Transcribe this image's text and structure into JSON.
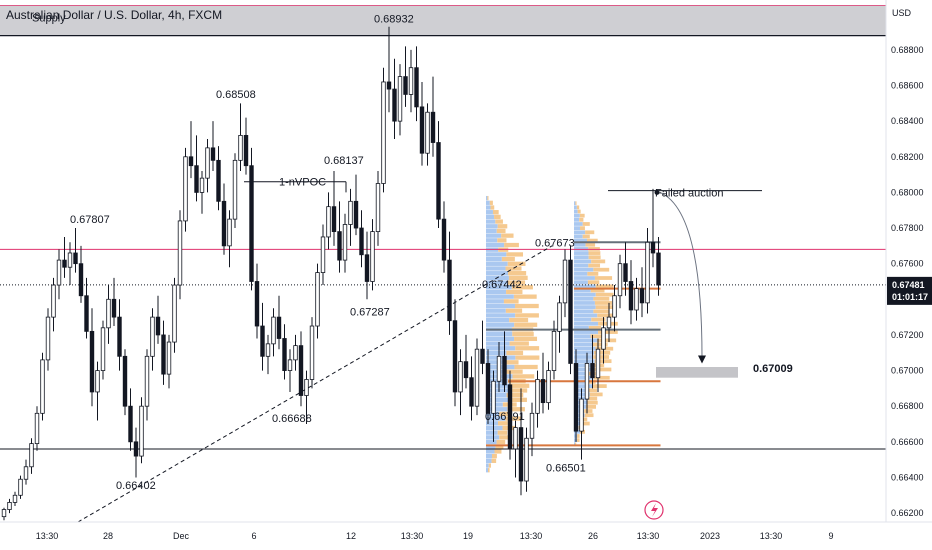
{
  "header": {
    "title": "Australian Dollar / U.S. Dollar, 4h, FXCM"
  },
  "colors": {
    "up": "#131722",
    "down": "#131722",
    "supply_zone": "#cfcfd3",
    "target_zone": "#c4c4c8",
    "magenta_line": "#e0336e",
    "poc_gray": "#66707a",
    "poc_orange": "#d8773e",
    "vp_blue": "#aac8f0",
    "vp_orange": "#f5c98f",
    "price_tag_bg": "#131722",
    "price_tag_fg": "#ffffff",
    "axis_text": "#131722"
  },
  "chart_data": {
    "type": "candlestick",
    "title": "Australian Dollar / U.S. Dollar, 4h, FXCM",
    "currency": "USD",
    "ylim": [
      0.6615,
      0.6908
    ],
    "y_ticks": [
      "0.68800",
      "0.68600",
      "0.68400",
      "0.68200",
      "0.68000",
      "0.67800",
      "0.67600",
      "0.67400",
      "0.67200",
      "0.67000",
      "0.66800",
      "0.66600",
      "0.66400",
      "0.66200"
    ],
    "x_ticks": [
      "13:30",
      "28",
      "Dec",
      "6",
      "12",
      "13:30",
      "19",
      "13:30",
      "26",
      "13:30",
      "2023",
      "13:30",
      "9"
    ],
    "last_price": "0.67481",
    "countdown": "01:01:17",
    "supply_zone": {
      "label": "Supply",
      "from": 0.6888,
      "to": 0.6905
    },
    "target_zone": {
      "from": 0.6696,
      "to": 0.6702
    },
    "horizontal_lines": [
      {
        "price": 0.6768,
        "kind": "magenta"
      },
      {
        "price": 0.6656,
        "kind": "dark"
      }
    ],
    "annotations": [
      {
        "text": "0.68932",
        "price": 0.68932
      },
      {
        "text": "0.68508",
        "price": 0.68508
      },
      {
        "text": "0.68137",
        "price": 0.68137
      },
      {
        "text": "0.67807",
        "price": 0.67807
      },
      {
        "text": "1-nVPOC",
        "price": 0.6806
      },
      {
        "text": "0.67673",
        "price": 0.67673
      },
      {
        "text": "0.67442",
        "price": 0.67442
      },
      {
        "text": "0.67287",
        "price": 0.67287
      },
      {
        "text": "0.67009",
        "price": 0.67009
      },
      {
        "text": "0.66688",
        "price": 0.66688
      },
      {
        "text": "0.66501",
        "price": 0.66501
      },
      {
        "text": "0.66402",
        "price": 0.66402
      },
      {
        "text": "0.66791",
        "price": 0.66791
      },
      {
        "text": "Failed auction",
        "price": 0.68
      }
    ],
    "candles": [
      [
        0.6618,
        0.6623,
        0.6616,
        0.6622
      ],
      [
        0.6622,
        0.6628,
        0.662,
        0.6626
      ],
      [
        0.6626,
        0.6632,
        0.6624,
        0.663
      ],
      [
        0.663,
        0.6641,
        0.6628,
        0.6639
      ],
      [
        0.6639,
        0.665,
        0.6636,
        0.6646
      ],
      [
        0.6646,
        0.6662,
        0.6642,
        0.6659
      ],
      [
        0.6659,
        0.668,
        0.6655,
        0.6676
      ],
      [
        0.6676,
        0.671,
        0.6672,
        0.6706
      ],
      [
        0.6706,
        0.6735,
        0.67,
        0.673
      ],
      [
        0.673,
        0.6752,
        0.6722,
        0.6748
      ],
      [
        0.6748,
        0.6768,
        0.674,
        0.6762
      ],
      [
        0.6762,
        0.6775,
        0.6752,
        0.6758
      ],
      [
        0.6758,
        0.6772,
        0.6748,
        0.6766
      ],
      [
        0.6766,
        0.678,
        0.6755,
        0.676
      ],
      [
        0.676,
        0.677,
        0.6738,
        0.6742
      ],
      [
        0.6742,
        0.6752,
        0.6718,
        0.6722
      ],
      [
        0.6722,
        0.6735,
        0.668,
        0.6688
      ],
      [
        0.6688,
        0.6705,
        0.6672,
        0.67
      ],
      [
        0.67,
        0.6728,
        0.6695,
        0.6724
      ],
      [
        0.6724,
        0.6748,
        0.6715,
        0.674
      ],
      [
        0.674,
        0.6752,
        0.6725,
        0.673
      ],
      [
        0.673,
        0.674,
        0.67,
        0.6708
      ],
      [
        0.6708,
        0.6712,
        0.6675,
        0.668
      ],
      [
        0.668,
        0.669,
        0.6655,
        0.666
      ],
      [
        0.666,
        0.6668,
        0.664,
        0.6652
      ],
      [
        0.6652,
        0.6685,
        0.6648,
        0.668
      ],
      [
        0.668,
        0.6712,
        0.6672,
        0.6708
      ],
      [
        0.6708,
        0.6735,
        0.67,
        0.673
      ],
      [
        0.673,
        0.6742,
        0.6715,
        0.672
      ],
      [
        0.672,
        0.6728,
        0.6692,
        0.6698
      ],
      [
        0.6698,
        0.672,
        0.669,
        0.6716
      ],
      [
        0.6716,
        0.6752,
        0.671,
        0.6748
      ],
      [
        0.6748,
        0.679,
        0.674,
        0.6784
      ],
      [
        0.6784,
        0.6825,
        0.6778,
        0.682
      ],
      [
        0.682,
        0.684,
        0.6808,
        0.6815
      ],
      [
        0.6815,
        0.6832,
        0.6795,
        0.68
      ],
      [
        0.68,
        0.6812,
        0.6788,
        0.6808
      ],
      [
        0.6808,
        0.683,
        0.68,
        0.6825
      ],
      [
        0.6825,
        0.684,
        0.6812,
        0.6818
      ],
      [
        0.6818,
        0.6826,
        0.679,
        0.6795
      ],
      [
        0.6795,
        0.6805,
        0.6765,
        0.677
      ],
      [
        0.677,
        0.679,
        0.6758,
        0.6785
      ],
      [
        0.6785,
        0.6822,
        0.678,
        0.6818
      ],
      [
        0.6818,
        0.685,
        0.6812,
        0.6832
      ],
      [
        0.6832,
        0.6842,
        0.681,
        0.6815
      ],
      [
        0.6815,
        0.6825,
        0.6745,
        0.675
      ],
      [
        0.675,
        0.676,
        0.6718,
        0.6725
      ],
      [
        0.6725,
        0.6738,
        0.67,
        0.6708
      ],
      [
        0.6708,
        0.672,
        0.6698,
        0.6715
      ],
      [
        0.6715,
        0.6735,
        0.6708,
        0.673
      ],
      [
        0.673,
        0.6742,
        0.6712,
        0.6718
      ],
      [
        0.6718,
        0.6726,
        0.6695,
        0.67
      ],
      [
        0.67,
        0.6712,
        0.6688,
        0.6706
      ],
      [
        0.6706,
        0.672,
        0.67,
        0.6714
      ],
      [
        0.6714,
        0.6722,
        0.668,
        0.6686
      ],
      [
        0.6686,
        0.67,
        0.667,
        0.6695
      ],
      [
        0.6695,
        0.673,
        0.669,
        0.6725
      ],
      [
        0.6725,
        0.676,
        0.6718,
        0.6755
      ],
      [
        0.6755,
        0.6782,
        0.6748,
        0.6775
      ],
      [
        0.6775,
        0.68,
        0.6768,
        0.6792
      ],
      [
        0.6792,
        0.6812,
        0.677,
        0.6778
      ],
      [
        0.6778,
        0.6795,
        0.6755,
        0.6762
      ],
      [
        0.6762,
        0.6788,
        0.6755,
        0.6782
      ],
      [
        0.6782,
        0.6802,
        0.677,
        0.6795
      ],
      [
        0.6795,
        0.681,
        0.6776,
        0.678
      ],
      [
        0.678,
        0.679,
        0.6758,
        0.6765
      ],
      [
        0.6765,
        0.6778,
        0.674,
        0.675
      ],
      [
        0.675,
        0.6785,
        0.6745,
        0.6778
      ],
      [
        0.6778,
        0.6812,
        0.677,
        0.6805
      ],
      [
        0.6805,
        0.687,
        0.68,
        0.6862
      ],
      [
        0.6862,
        0.6893,
        0.6845,
        0.6858
      ],
      [
        0.6858,
        0.6875,
        0.683,
        0.684
      ],
      [
        0.684,
        0.6872,
        0.6832,
        0.6865
      ],
      [
        0.6865,
        0.6882,
        0.6848,
        0.6855
      ],
      [
        0.6855,
        0.688,
        0.6845,
        0.687
      ],
      [
        0.687,
        0.6882,
        0.684,
        0.6848
      ],
      [
        0.6848,
        0.6862,
        0.6815,
        0.6822
      ],
      [
        0.6822,
        0.685,
        0.6815,
        0.6845
      ],
      [
        0.6845,
        0.6865,
        0.682,
        0.6828
      ],
      [
        0.6828,
        0.684,
        0.678,
        0.6785
      ],
      [
        0.6785,
        0.6795,
        0.6755,
        0.6762
      ],
      [
        0.6762,
        0.6778,
        0.672,
        0.6728
      ],
      [
        0.6728,
        0.674,
        0.668,
        0.6688
      ],
      [
        0.6688,
        0.6712,
        0.6675,
        0.6705
      ],
      [
        0.6705,
        0.672,
        0.669,
        0.6696
      ],
      [
        0.6696,
        0.6708,
        0.6672,
        0.668
      ],
      [
        0.668,
        0.6718,
        0.6675,
        0.6712
      ],
      [
        0.6712,
        0.6728,
        0.6698,
        0.6704
      ],
      [
        0.6704,
        0.6712,
        0.667,
        0.6676
      ],
      [
        0.6676,
        0.67,
        0.666,
        0.6694
      ],
      [
        0.6694,
        0.6716,
        0.6688,
        0.6708
      ],
      [
        0.6708,
        0.6722,
        0.6688,
        0.6692
      ],
      [
        0.6692,
        0.67,
        0.665,
        0.6656
      ],
      [
        0.6656,
        0.6672,
        0.664,
        0.6668
      ],
      [
        0.6668,
        0.669,
        0.663,
        0.6638
      ],
      [
        0.6638,
        0.6668,
        0.6632,
        0.6662
      ],
      [
        0.6662,
        0.6682,
        0.6652,
        0.6676
      ],
      [
        0.6676,
        0.67,
        0.6668,
        0.6695
      ],
      [
        0.6695,
        0.671,
        0.6676,
        0.6682
      ],
      [
        0.6682,
        0.6705,
        0.6678,
        0.67
      ],
      [
        0.67,
        0.6728,
        0.6695,
        0.6722
      ],
      [
        0.6722,
        0.6742,
        0.671,
        0.6738
      ],
      [
        0.6738,
        0.6768,
        0.673,
        0.6762
      ],
      [
        0.6762,
        0.677,
        0.6698,
        0.6704
      ],
      [
        0.6704,
        0.6712,
        0.666,
        0.6666
      ],
      [
        0.6666,
        0.669,
        0.665,
        0.6684
      ],
      [
        0.6684,
        0.671,
        0.6676,
        0.6704
      ],
      [
        0.6704,
        0.672,
        0.669,
        0.6696
      ],
      [
        0.6696,
        0.6718,
        0.6688,
        0.6712
      ],
      [
        0.6712,
        0.673,
        0.6704,
        0.6724
      ],
      [
        0.6724,
        0.6738,
        0.6716,
        0.673
      ],
      [
        0.673,
        0.6748,
        0.6722,
        0.6742
      ],
      [
        0.6742,
        0.6765,
        0.6735,
        0.676
      ],
      [
        0.676,
        0.6772,
        0.6742,
        0.675
      ],
      [
        0.675,
        0.6762,
        0.6726,
        0.6734
      ],
      [
        0.6734,
        0.6752,
        0.6728,
        0.6746
      ],
      [
        0.6746,
        0.6758,
        0.673,
        0.6738
      ],
      [
        0.6738,
        0.678,
        0.6732,
        0.6772
      ],
      [
        0.6772,
        0.6802,
        0.6758,
        0.6766
      ],
      [
        0.6766,
        0.6775,
        0.6742,
        0.6748
      ]
    ],
    "volume_profiles": [
      {
        "start_index": 88,
        "width_bars": 10,
        "price_from": 0.664,
        "price_to": 0.6798,
        "blue_share": 0.55
      },
      {
        "start_index": 104,
        "width_bars": 8,
        "price_from": 0.6655,
        "price_to": 0.6795,
        "blue_share": 0.55
      }
    ],
    "poc_lines": [
      {
        "price": 0.6772,
        "from_index": 104,
        "to_index": 119,
        "kind": "gray"
      },
      {
        "price": 0.6746,
        "from_index": 104,
        "to_index": 119,
        "kind": "orange"
      },
      {
        "price": 0.6723,
        "from_index": 88,
        "to_index": 119,
        "kind": "gray"
      },
      {
        "price": 0.6694,
        "from_index": 92,
        "to_index": 119,
        "kind": "orange"
      },
      {
        "price": 0.6658,
        "from_index": 88,
        "to_index": 119,
        "kind": "orange"
      }
    ]
  }
}
